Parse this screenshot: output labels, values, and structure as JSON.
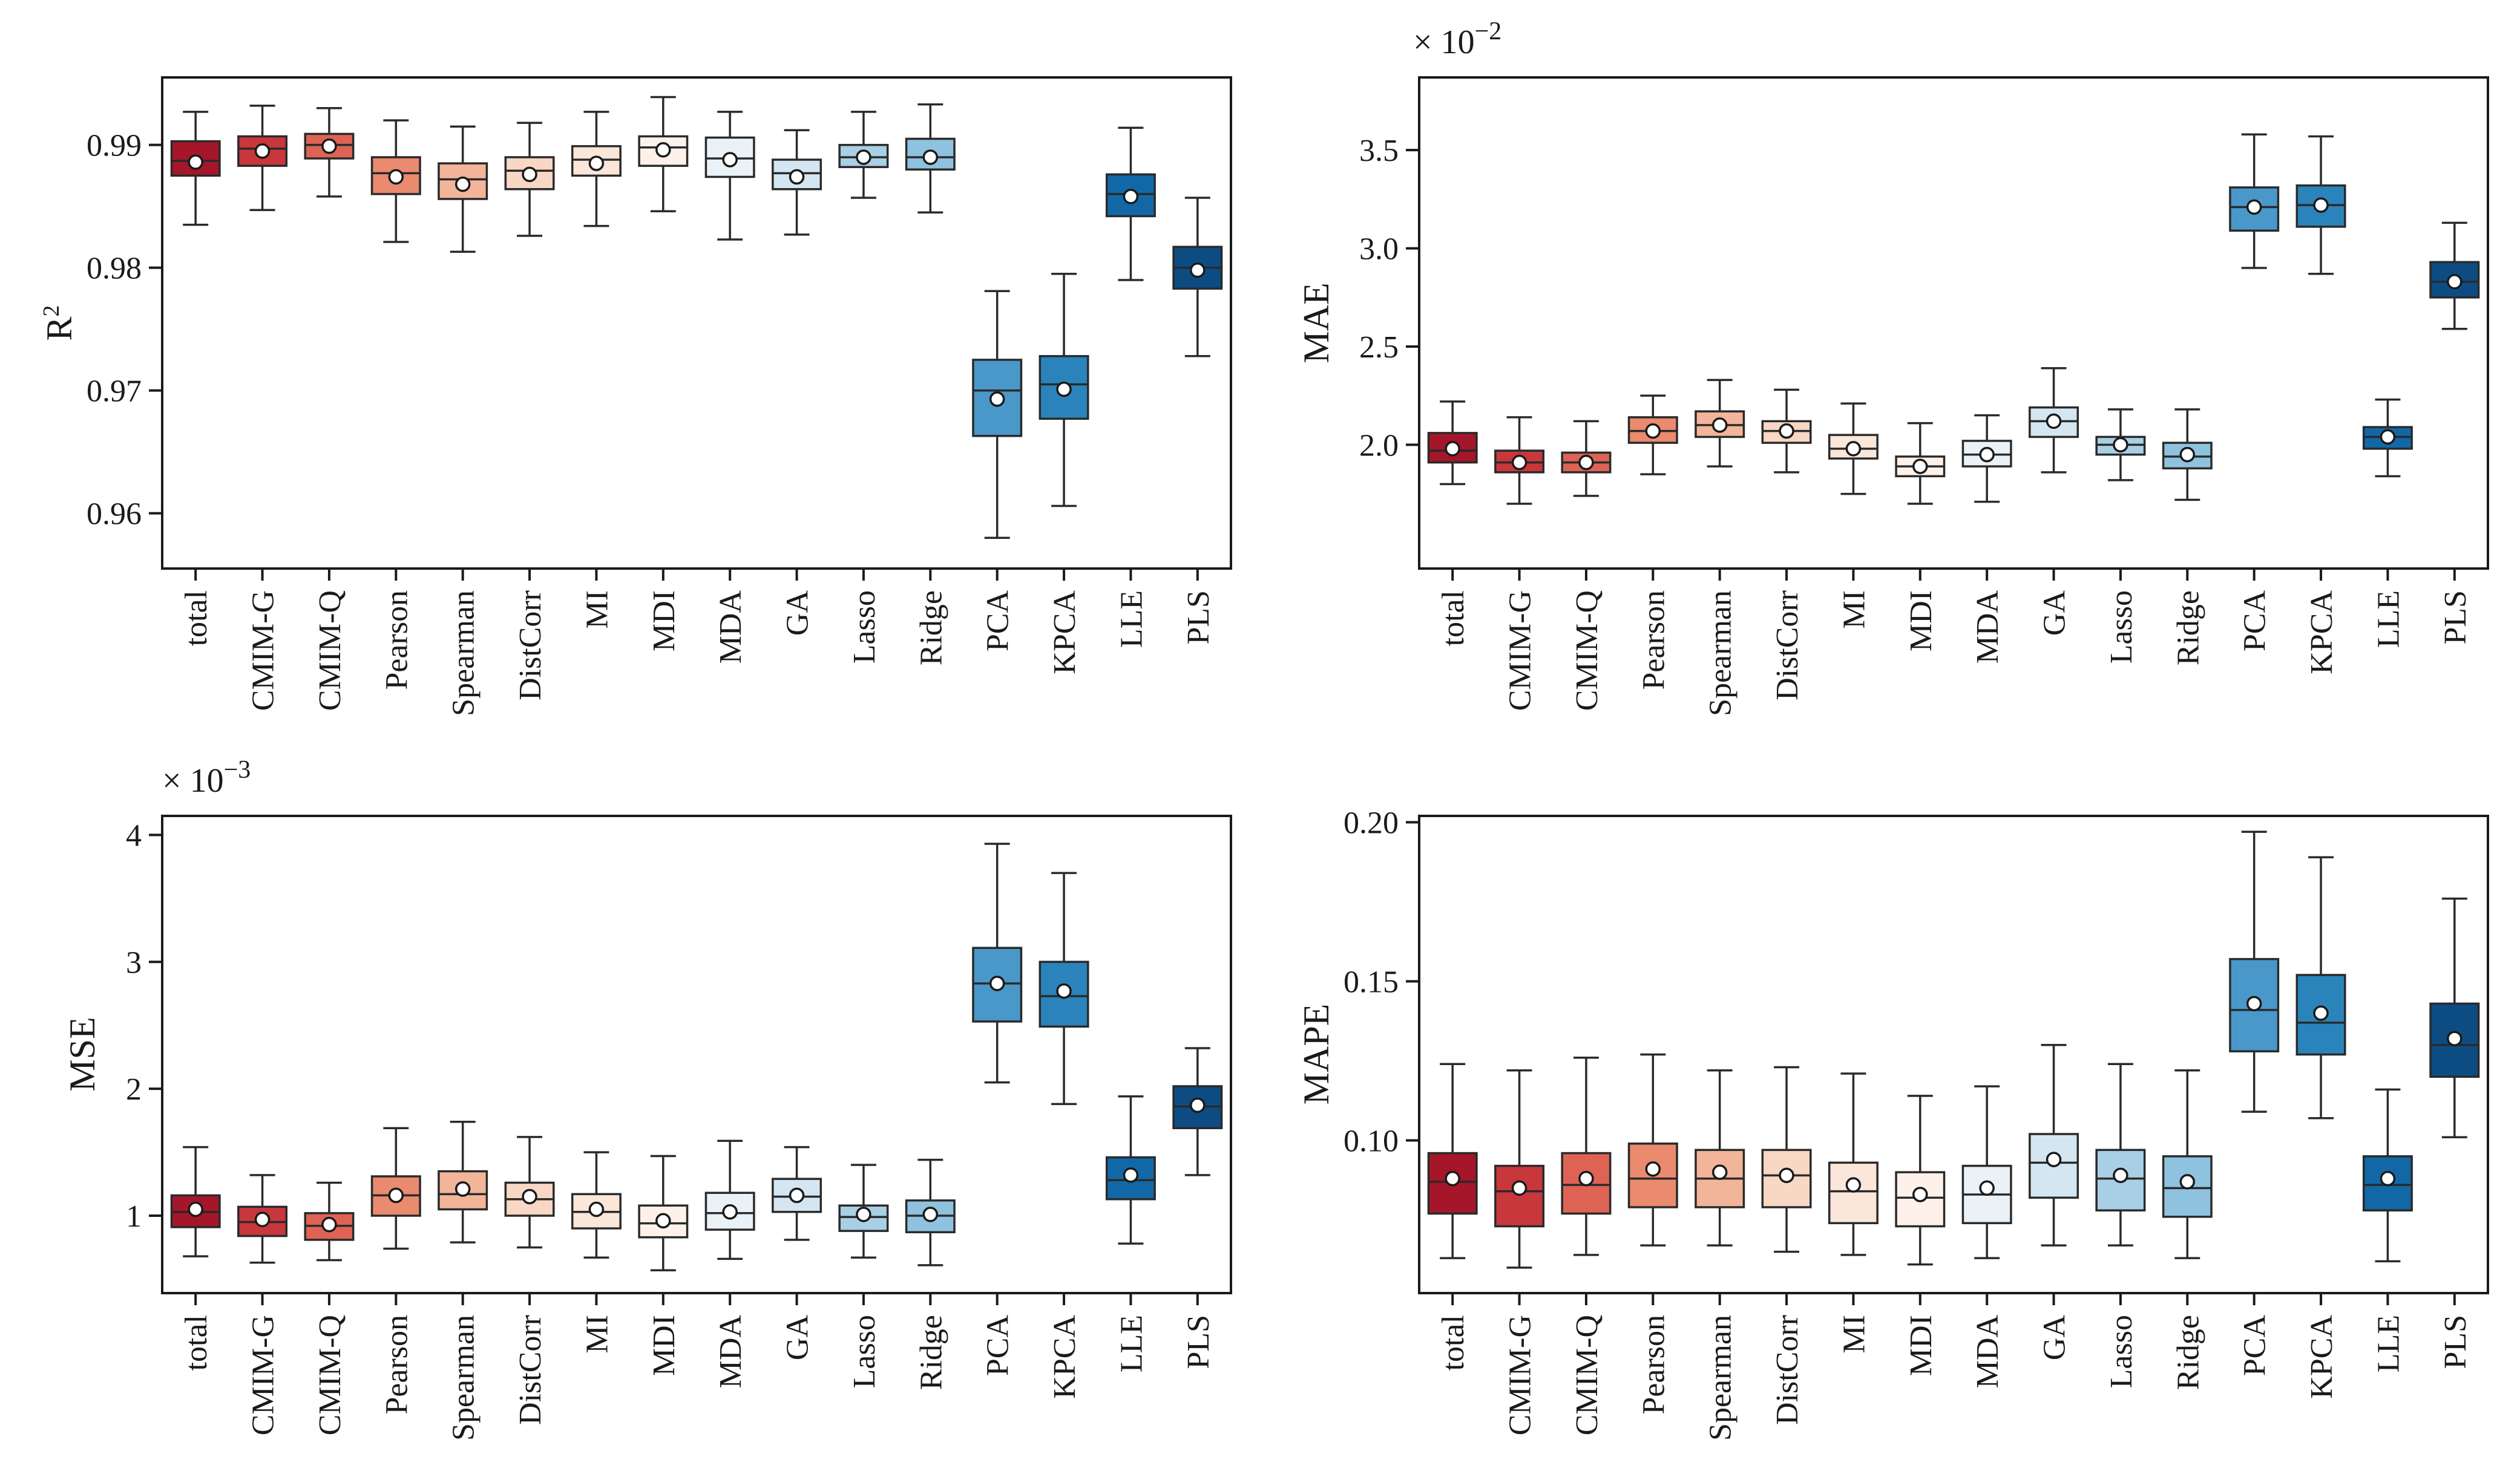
{
  "categories": [
    "total",
    "CMIM-G",
    "CMIM-Q",
    "Pearson",
    "Spearman",
    "DistCorr",
    "MI",
    "MDI",
    "MDA",
    "GA",
    "Lasso",
    "Ridge",
    "PCA",
    "KPCA",
    "LLE",
    "PLS"
  ],
  "colors": [
    "#a5162a",
    "#c8373c",
    "#de6355",
    "#ea8a6e",
    "#f3b59a",
    "#f9d7c5",
    "#fbe6da",
    "#fdf1ea",
    "#ebf2f7",
    "#d4e6f1",
    "#a9cfe5",
    "#8fc2df",
    "#4a98c9",
    "#2b83bb",
    "#1268a6",
    "#0c4c83"
  ],
  "chart_data": [
    {
      "id": "r2",
      "type": "box",
      "ylabel": "R",
      "ylabel_sup": "2",
      "multiplier": "",
      "multiplier_exp": "",
      "ylim": [
        0.9555,
        0.9955
      ],
      "yticks": [
        0.96,
        0.97,
        0.98,
        0.99
      ],
      "ytick_labels": [
        "0.96",
        "0.97",
        "0.98",
        "0.99"
      ],
      "boxes": [
        {
          "low": 0.9835,
          "q1": 0.9875,
          "median": 0.9887,
          "q3": 0.9903,
          "high": 0.9927,
          "mean": 0.9886
        },
        {
          "low": 0.9847,
          "q1": 0.9883,
          "median": 0.9897,
          "q3": 0.9907,
          "high": 0.9932,
          "mean": 0.9895
        },
        {
          "low": 0.9858,
          "q1": 0.9889,
          "median": 0.99,
          "q3": 0.9909,
          "high": 0.993,
          "mean": 0.9899
        },
        {
          "low": 0.9821,
          "q1": 0.986,
          "median": 0.9877,
          "q3": 0.989,
          "high": 0.992,
          "mean": 0.9874
        },
        {
          "low": 0.9813,
          "q1": 0.9856,
          "median": 0.9872,
          "q3": 0.9885,
          "high": 0.9915,
          "mean": 0.9868
        },
        {
          "low": 0.9826,
          "q1": 0.9864,
          "median": 0.9879,
          "q3": 0.989,
          "high": 0.9918,
          "mean": 0.9876
        },
        {
          "low": 0.9834,
          "q1": 0.9875,
          "median": 0.9888,
          "q3": 0.9899,
          "high": 0.9927,
          "mean": 0.9885
        },
        {
          "low": 0.9846,
          "q1": 0.9883,
          "median": 0.9898,
          "q3": 0.9907,
          "high": 0.9939,
          "mean": 0.9896
        },
        {
          "low": 0.9823,
          "q1": 0.9874,
          "median": 0.9889,
          "q3": 0.9906,
          "high": 0.9927,
          "mean": 0.9888
        },
        {
          "low": 0.9827,
          "q1": 0.9864,
          "median": 0.9877,
          "q3": 0.9888,
          "high": 0.9912,
          "mean": 0.9874
        },
        {
          "low": 0.9857,
          "q1": 0.9882,
          "median": 0.989,
          "q3": 0.99,
          "high": 0.9927,
          "mean": 0.989
        },
        {
          "low": 0.9845,
          "q1": 0.988,
          "median": 0.989,
          "q3": 0.9905,
          "high": 0.9933,
          "mean": 0.989
        },
        {
          "low": 0.958,
          "q1": 0.9663,
          "median": 0.97,
          "q3": 0.9725,
          "high": 0.9781,
          "mean": 0.9693
        },
        {
          "low": 0.9606,
          "q1": 0.9677,
          "median": 0.9705,
          "q3": 0.9728,
          "high": 0.9795,
          "mean": 0.9701
        },
        {
          "low": 0.979,
          "q1": 0.9842,
          "median": 0.986,
          "q3": 0.9876,
          "high": 0.9914,
          "mean": 0.9858
        },
        {
          "low": 0.9728,
          "q1": 0.9783,
          "median": 0.98,
          "q3": 0.9817,
          "high": 0.9857,
          "mean": 0.9798
        }
      ]
    },
    {
      "id": "mae",
      "type": "box",
      "ylabel": "MAE",
      "ylabel_sup": "",
      "multiplier": "× 10",
      "multiplier_exp": "−2",
      "ylim": [
        1.37,
        3.87
      ],
      "yticks": [
        2.0,
        2.5,
        3.0,
        3.5
      ],
      "ytick_labels": [
        "2.0",
        "2.5",
        "3.0",
        "3.5"
      ],
      "boxes": [
        {
          "low": 1.8,
          "q1": 1.91,
          "median": 1.97,
          "q3": 2.06,
          "high": 2.22,
          "mean": 1.98
        },
        {
          "low": 1.7,
          "q1": 1.86,
          "median": 1.91,
          "q3": 1.97,
          "high": 2.14,
          "mean": 1.91
        },
        {
          "low": 1.74,
          "q1": 1.86,
          "median": 1.91,
          "q3": 1.96,
          "high": 2.12,
          "mean": 1.91
        },
        {
          "low": 1.85,
          "q1": 2.01,
          "median": 2.07,
          "q3": 2.14,
          "high": 2.25,
          "mean": 2.07
        },
        {
          "low": 1.89,
          "q1": 2.04,
          "median": 2.1,
          "q3": 2.17,
          "high": 2.33,
          "mean": 2.1
        },
        {
          "low": 1.86,
          "q1": 2.01,
          "median": 2.07,
          "q3": 2.12,
          "high": 2.28,
          "mean": 2.07
        },
        {
          "low": 1.75,
          "q1": 1.93,
          "median": 1.98,
          "q3": 2.05,
          "high": 2.21,
          "mean": 1.98
        },
        {
          "low": 1.7,
          "q1": 1.84,
          "median": 1.89,
          "q3": 1.94,
          "high": 2.11,
          "mean": 1.89
        },
        {
          "low": 1.71,
          "q1": 1.89,
          "median": 1.95,
          "q3": 2.02,
          "high": 2.15,
          "mean": 1.95
        },
        {
          "low": 1.86,
          "q1": 2.04,
          "median": 2.12,
          "q3": 2.19,
          "high": 2.39,
          "mean": 2.12
        },
        {
          "low": 1.82,
          "q1": 1.95,
          "median": 2.0,
          "q3": 2.04,
          "high": 2.18,
          "mean": 2.0
        },
        {
          "low": 1.72,
          "q1": 1.88,
          "median": 1.94,
          "q3": 2.01,
          "high": 2.18,
          "mean": 1.95
        },
        {
          "low": 2.9,
          "q1": 3.09,
          "median": 3.21,
          "q3": 3.31,
          "high": 3.58,
          "mean": 3.21
        },
        {
          "low": 2.87,
          "q1": 3.11,
          "median": 3.22,
          "q3": 3.32,
          "high": 3.57,
          "mean": 3.22
        },
        {
          "low": 1.84,
          "q1": 1.98,
          "median": 2.04,
          "q3": 2.09,
          "high": 2.23,
          "mean": 2.04
        },
        {
          "low": 2.59,
          "q1": 2.75,
          "median": 2.83,
          "q3": 2.93,
          "high": 3.13,
          "mean": 2.83
        }
      ]
    },
    {
      "id": "mse",
      "type": "box",
      "ylabel": "MSE",
      "ylabel_sup": "",
      "multiplier": "× 10",
      "multiplier_exp": "−3",
      "ylim": [
        0.39,
        4.15
      ],
      "yticks": [
        1,
        2,
        3,
        4
      ],
      "ytick_labels": [
        "1",
        "2",
        "3",
        "4"
      ],
      "boxes": [
        {
          "low": 0.68,
          "q1": 0.91,
          "median": 1.03,
          "q3": 1.16,
          "high": 1.54,
          "mean": 1.05
        },
        {
          "low": 0.63,
          "q1": 0.84,
          "median": 0.95,
          "q3": 1.07,
          "high": 1.32,
          "mean": 0.97
        },
        {
          "low": 0.65,
          "q1": 0.81,
          "median": 0.92,
          "q3": 1.02,
          "high": 1.26,
          "mean": 0.93
        },
        {
          "low": 0.74,
          "q1": 1.0,
          "median": 1.16,
          "q3": 1.31,
          "high": 1.69,
          "mean": 1.16
        },
        {
          "low": 0.79,
          "q1": 1.05,
          "median": 1.17,
          "q3": 1.35,
          "high": 1.74,
          "mean": 1.21
        },
        {
          "low": 0.75,
          "q1": 1.0,
          "median": 1.13,
          "q3": 1.26,
          "high": 1.62,
          "mean": 1.15
        },
        {
          "low": 0.67,
          "q1": 0.9,
          "median": 1.03,
          "q3": 1.17,
          "high": 1.5,
          "mean": 1.05
        },
        {
          "low": 0.57,
          "q1": 0.83,
          "median": 0.94,
          "q3": 1.08,
          "high": 1.47,
          "mean": 0.96
        },
        {
          "low": 0.66,
          "q1": 0.89,
          "median": 1.02,
          "q3": 1.18,
          "high": 1.59,
          "mean": 1.03
        },
        {
          "low": 0.81,
          "q1": 1.03,
          "median": 1.15,
          "q3": 1.29,
          "high": 1.54,
          "mean": 1.16
        },
        {
          "low": 0.67,
          "q1": 0.88,
          "median": 0.99,
          "q3": 1.08,
          "high": 1.4,
          "mean": 1.01
        },
        {
          "low": 0.61,
          "q1": 0.87,
          "median": 1.0,
          "q3": 1.12,
          "high": 1.44,
          "mean": 1.01
        },
        {
          "low": 2.05,
          "q1": 2.53,
          "median": 2.83,
          "q3": 3.11,
          "high": 3.93,
          "mean": 2.83
        },
        {
          "low": 1.88,
          "q1": 2.49,
          "median": 2.73,
          "q3": 3.0,
          "high": 3.7,
          "mean": 2.77
        },
        {
          "low": 0.78,
          "q1": 1.13,
          "median": 1.28,
          "q3": 1.46,
          "high": 1.94,
          "mean": 1.32
        },
        {
          "low": 1.32,
          "q1": 1.69,
          "median": 1.86,
          "q3": 2.02,
          "high": 2.32,
          "mean": 1.87
        }
      ]
    },
    {
      "id": "mape",
      "type": "box",
      "ylabel": "MAPE",
      "ylabel_sup": "",
      "multiplier": "",
      "multiplier_exp": "",
      "ylim": [
        0.052,
        0.202
      ],
      "yticks": [
        0.1,
        0.15,
        0.2
      ],
      "ytick_labels": [
        "0.10",
        "0.15",
        "0.20"
      ],
      "boxes": [
        {
          "low": 0.063,
          "q1": 0.077,
          "median": 0.087,
          "q3": 0.096,
          "high": 0.124,
          "mean": 0.088
        },
        {
          "low": 0.06,
          "q1": 0.073,
          "median": 0.084,
          "q3": 0.092,
          "high": 0.122,
          "mean": 0.085
        },
        {
          "low": 0.064,
          "q1": 0.077,
          "median": 0.086,
          "q3": 0.096,
          "high": 0.126,
          "mean": 0.088
        },
        {
          "low": 0.067,
          "q1": 0.079,
          "median": 0.088,
          "q3": 0.099,
          "high": 0.127,
          "mean": 0.091
        },
        {
          "low": 0.067,
          "q1": 0.079,
          "median": 0.088,
          "q3": 0.097,
          "high": 0.122,
          "mean": 0.09
        },
        {
          "low": 0.065,
          "q1": 0.079,
          "median": 0.089,
          "q3": 0.097,
          "high": 0.123,
          "mean": 0.089
        },
        {
          "low": 0.064,
          "q1": 0.074,
          "median": 0.084,
          "q3": 0.093,
          "high": 0.121,
          "mean": 0.086
        },
        {
          "low": 0.061,
          "q1": 0.073,
          "median": 0.082,
          "q3": 0.09,
          "high": 0.114,
          "mean": 0.083
        },
        {
          "low": 0.063,
          "q1": 0.074,
          "median": 0.083,
          "q3": 0.092,
          "high": 0.117,
          "mean": 0.085
        },
        {
          "low": 0.067,
          "q1": 0.082,
          "median": 0.093,
          "q3": 0.102,
          "high": 0.13,
          "mean": 0.094
        },
        {
          "low": 0.067,
          "q1": 0.078,
          "median": 0.088,
          "q3": 0.097,
          "high": 0.124,
          "mean": 0.089
        },
        {
          "low": 0.063,
          "q1": 0.076,
          "median": 0.085,
          "q3": 0.095,
          "high": 0.122,
          "mean": 0.087
        },
        {
          "low": 0.109,
          "q1": 0.128,
          "median": 0.141,
          "q3": 0.157,
          "high": 0.197,
          "mean": 0.143
        },
        {
          "low": 0.107,
          "q1": 0.127,
          "median": 0.137,
          "q3": 0.152,
          "high": 0.189,
          "mean": 0.14
        },
        {
          "low": 0.062,
          "q1": 0.078,
          "median": 0.086,
          "q3": 0.095,
          "high": 0.116,
          "mean": 0.088
        },
        {
          "low": 0.101,
          "q1": 0.12,
          "median": 0.13,
          "q3": 0.143,
          "high": 0.176,
          "mean": 0.132
        }
      ]
    }
  ]
}
